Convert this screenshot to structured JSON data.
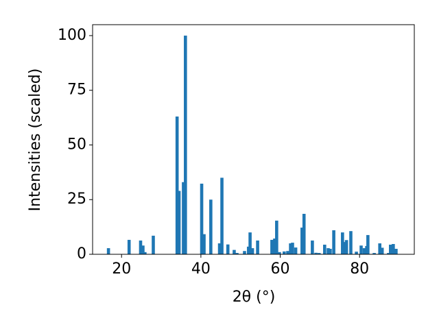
{
  "chart_data": {
    "type": "bar",
    "xlabel": "2θ (°)",
    "ylabel": "Intensities (scaled)",
    "x": [
      16.7,
      21.9,
      24.8,
      25.4,
      25.9,
      28.0,
      34.0,
      34.5,
      35.6,
      36.1,
      40.2,
      40.8,
      42.5,
      44.7,
      45.3,
      46.8,
      48.4,
      49.1,
      51.0,
      52.0,
      52.4,
      53.0,
      54.3,
      57.9,
      58.6,
      59.1,
      59.8,
      61.0,
      61.9,
      62.6,
      63.1,
      63.9,
      65.5,
      66.0,
      68.1,
      69.0,
      69.8,
      71.2,
      72.1,
      72.6,
      73.5,
      75.7,
      76.2,
      76.7,
      77.8,
      79.2,
      80.4,
      81.2,
      81.8,
      82.1,
      83.7,
      85.1,
      85.7,
      87.3,
      87.8,
      88.5,
      89.2
    ],
    "values": [
      2.8,
      6.6,
      6.3,
      4,
      1,
      8.5,
      63,
      29,
      33,
      100,
      32.3,
      9.2,
      25,
      5,
      35,
      4.5,
      2,
      0.6,
      1.5,
      3.5,
      10,
      2.8,
      6.3,
      6.6,
      7.2,
      15.4,
      1,
      1.3,
      1.5,
      5,
      5.3,
      3.1,
      12.2,
      18.5,
      6.3,
      0.7,
      0.6,
      4.4,
      2.8,
      2.5,
      11,
      10,
      5.6,
      6.5,
      10.6,
      1.2,
      4,
      2.8,
      3.8,
      8.8,
      0.6,
      5,
      3,
      0.6,
      4.4,
      4.7,
      2.5
    ],
    "color": "#1f77b4",
    "xlim": [
      12.7,
      93.8
    ],
    "xticks": [
      20,
      40,
      60,
      80
    ],
    "ylim": [
      0,
      105
    ],
    "yticks": [
      0,
      25,
      50,
      75,
      100
    ]
  }
}
